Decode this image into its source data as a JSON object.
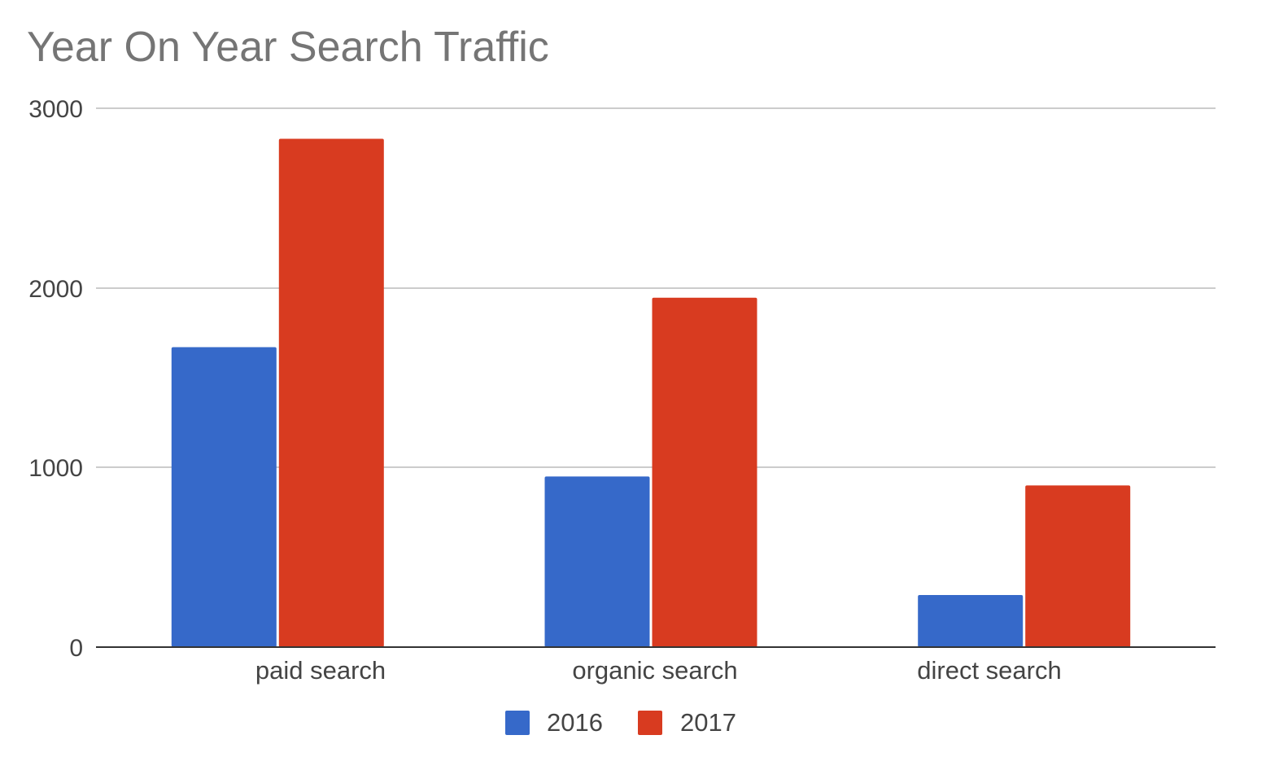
{
  "chart_data": {
    "type": "bar",
    "title": "Year On Year Search Traffic",
    "xlabel": "",
    "ylabel": "",
    "categories": [
      "paid search",
      "organic search",
      "direct search"
    ],
    "series": [
      {
        "name": "2016",
        "color": "#3669c9",
        "values": [
          1670,
          950,
          290
        ]
      },
      {
        "name": "2017",
        "color": "#d83b20",
        "values": [
          2830,
          1945,
          900
        ]
      }
    ],
    "ylim": [
      0,
      3000
    ],
    "yticks": [
      0,
      1000,
      2000,
      3000
    ],
    "ytick_labels": [
      "0",
      "1000",
      "2000",
      "3000"
    ],
    "grid": true,
    "legend_position": "bottom"
  }
}
